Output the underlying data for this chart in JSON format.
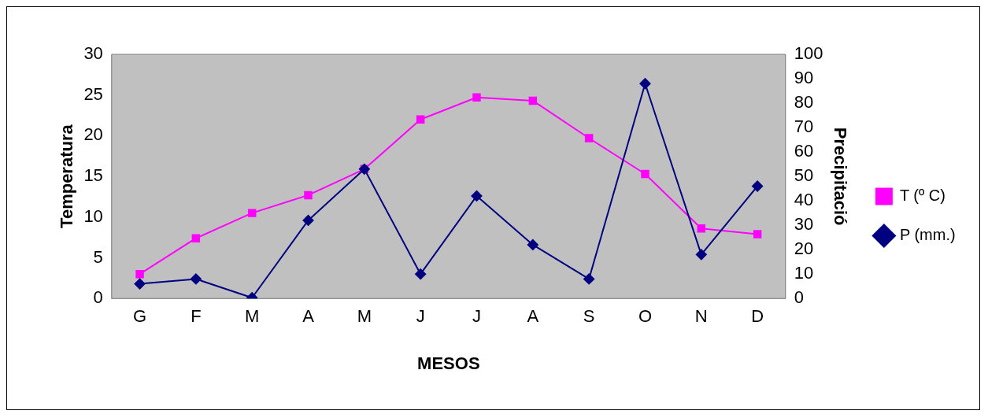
{
  "chart_data": {
    "type": "line",
    "xlabel": "MESOS",
    "ylabel": "Temperatura",
    "y2label": "Precipitació",
    "categories": [
      "G",
      "F",
      "M",
      "A",
      "M",
      "J",
      "J",
      "A",
      "S",
      "O",
      "N",
      "D"
    ],
    "series": [
      {
        "name": "T (º C)",
        "color": "#ff00ff",
        "marker": "square",
        "values": [
          3.0,
          7.4,
          10.5,
          12.7,
          15.9,
          22.0,
          24.7,
          24.3,
          19.7,
          15.3,
          8.6,
          7.9
        ]
      },
      {
        "name": "P (mm.)",
        "color": "#000080",
        "marker": "diamond",
        "axis": "y2",
        "values": [
          6,
          8,
          0.3,
          32,
          53,
          10,
          42,
          22,
          8,
          88,
          18,
          46
        ]
      }
    ],
    "ylim": [
      0,
      30
    ],
    "yticks": [
      0,
      5,
      10,
      15,
      20,
      25,
      30
    ],
    "y2lim": [
      0,
      100
    ],
    "y2ticks": [
      0,
      10,
      20,
      30,
      40,
      50,
      60,
      70,
      80,
      90,
      100
    ],
    "grid": false,
    "legend": "right"
  }
}
